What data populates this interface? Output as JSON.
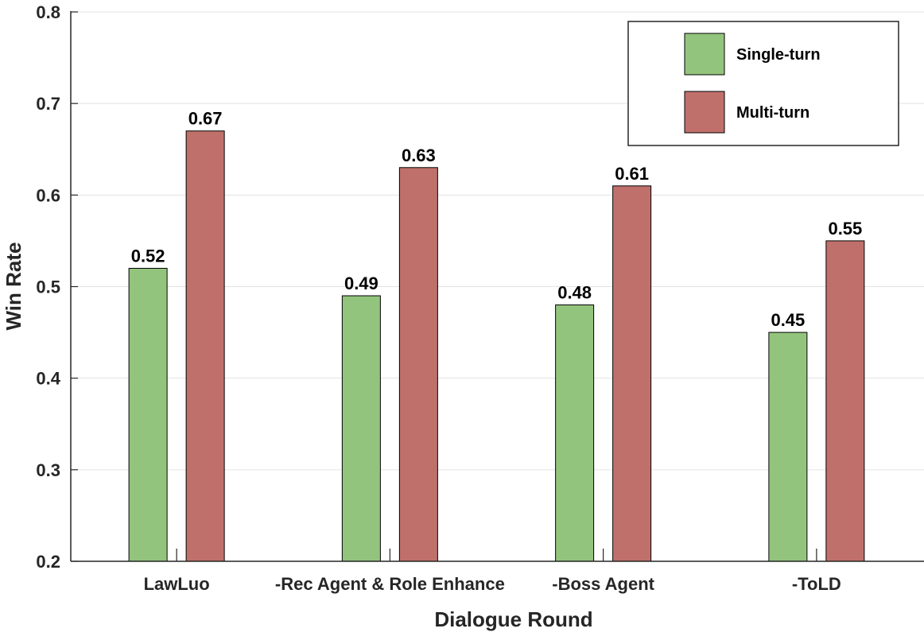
{
  "chart_data": {
    "type": "bar",
    "title": "",
    "xlabel": "Dialogue Round",
    "ylabel": "Win Rate",
    "ylim": [
      0.2,
      0.8
    ],
    "yticks": [
      "0.2",
      "0.3",
      "0.4",
      "0.5",
      "0.6",
      "0.7",
      "0.8"
    ],
    "grid": true,
    "legend_position": "top-right",
    "categories": [
      "LawLuo",
      "-Rec Agent & Role Enhance",
      "-Boss Agent",
      "-ToLD"
    ],
    "series": [
      {
        "name": "Single-turn",
        "color": "#93c47d",
        "values": [
          0.52,
          0.49,
          0.48,
          0.45
        ],
        "labels": [
          "0.52",
          "0.49",
          "0.48",
          "0.45"
        ]
      },
      {
        "name": "Multi-turn",
        "color": "#c0706b",
        "values": [
          0.67,
          0.63,
          0.61,
          0.55
        ],
        "labels": [
          "0.67",
          "0.63",
          "0.61",
          "0.55"
        ]
      }
    ]
  }
}
